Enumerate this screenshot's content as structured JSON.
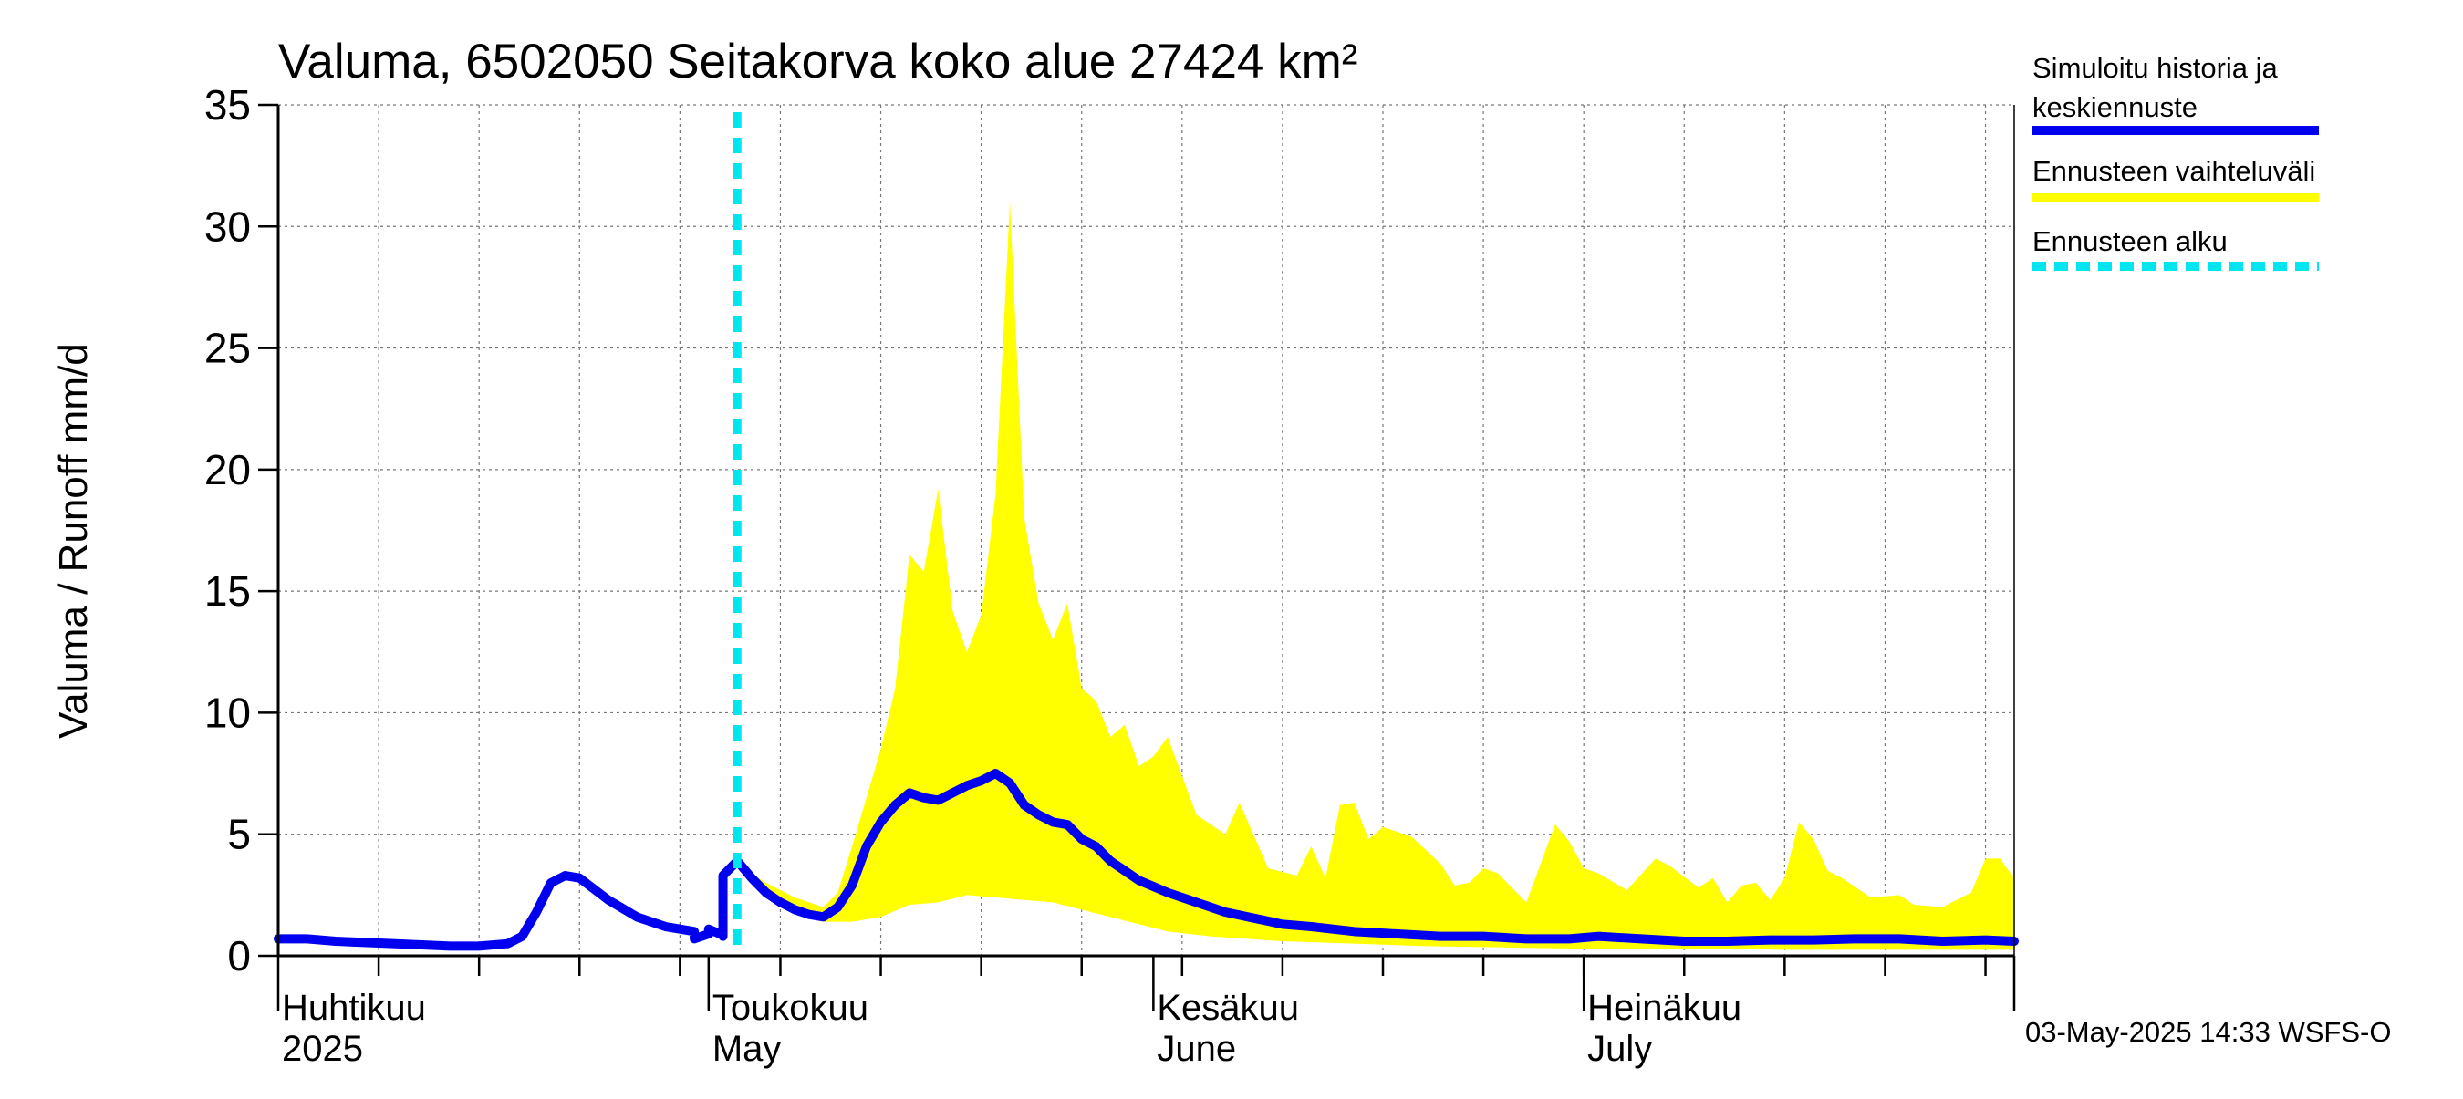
{
  "chart_data": {
    "type": "area",
    "title": "Valuma, 6502050 Seitakorva koko alue 27424 km²",
    "ylabel": "Valuma / Runoff     mm/d",
    "ylim": [
      0,
      35
    ],
    "yticks": [
      "0",
      "5",
      "10",
      "15",
      "20",
      "25",
      "30",
      "35"
    ],
    "xlim": [
      "2025-04-01",
      "2025-07-31"
    ],
    "grid": true,
    "legend_position": "right",
    "month_labels": [
      {
        "date": "2025-04-01",
        "fi": "Huhtikuu",
        "en": "2025"
      },
      {
        "date": "2025-05-01",
        "fi": "Toukokuu",
        "en": "May"
      },
      {
        "date": "2025-06-01",
        "fi": "Kesäkuu",
        "en": "June"
      },
      {
        "date": "2025-07-01",
        "fi": "Heinäkuu",
        "en": "July"
      }
    ],
    "forecast_start": "2025-05-03",
    "series": [
      {
        "name": "Simuloitu historia ja keskiennuste",
        "color": "#0000ee",
        "points": [
          [
            "2025-04-01",
            0.7
          ],
          [
            "2025-04-03",
            0.7
          ],
          [
            "2025-04-05",
            0.6
          ],
          [
            "2025-04-07",
            0.55
          ],
          [
            "2025-04-09",
            0.5
          ],
          [
            "2025-04-11",
            0.45
          ],
          [
            "2025-04-13",
            0.4
          ],
          [
            "2025-04-15",
            0.4
          ],
          [
            "2025-04-17",
            0.5
          ],
          [
            "2025-04-18",
            0.8
          ],
          [
            "2025-04-19",
            1.8
          ],
          [
            "2025-04-20",
            3.0
          ],
          [
            "2025-04-21",
            3.3
          ],
          [
            "2025-04-22",
            3.2
          ],
          [
            "2025-04-24",
            2.3
          ],
          [
            "2025-04-26",
            1.6
          ],
          [
            "2025-04-28",
            1.2
          ],
          [
            "2025-04-30",
            1.0
          ],
          [
            "2025-05-02",
            0.85
          ],
          [
            "2025-04-29",
            1.1
          ],
          [
            "2025-05-01",
            0.9
          ],
          [
            "2025-05-02",
            0.8
          ],
          [
            "2025-05-01",
            0.95
          ],
          [
            "2025-04-30",
            0.7
          ],
          [
            "2025-05-01",
            1.1
          ],
          [
            "2025-05-02",
            3.3
          ],
          [
            "2025-05-03",
            3.9
          ],
          [
            "2025-05-04",
            3.2
          ],
          [
            "2025-05-05",
            2.6
          ],
          [
            "2025-05-06",
            2.2
          ],
          [
            "2025-05-07",
            1.9
          ],
          [
            "2025-05-08",
            1.7
          ],
          [
            "2025-05-09",
            1.6
          ],
          [
            "2025-05-10",
            2.0
          ],
          [
            "2025-05-11",
            2.9
          ],
          [
            "2025-05-12",
            4.5
          ],
          [
            "2025-05-13",
            5.5
          ],
          [
            "2025-05-14",
            6.2
          ],
          [
            "2025-05-15",
            6.7
          ],
          [
            "2025-05-16",
            6.5
          ],
          [
            "2025-05-17",
            6.4
          ],
          [
            "2025-05-18",
            6.7
          ],
          [
            "2025-05-19",
            7.0
          ],
          [
            "2025-05-20",
            7.2
          ],
          [
            "2025-05-21",
            7.5
          ],
          [
            "2025-05-22",
            7.1
          ],
          [
            "2025-05-23",
            6.2
          ],
          [
            "2025-05-24",
            5.8
          ],
          [
            "2025-05-25",
            5.5
          ],
          [
            "2025-05-26",
            5.4
          ],
          [
            "2025-05-27",
            4.8
          ],
          [
            "2025-05-28",
            4.5
          ],
          [
            "2025-05-29",
            3.9
          ],
          [
            "2025-05-30",
            3.5
          ],
          [
            "2025-05-31",
            3.1
          ],
          [
            "2025-06-02",
            2.6
          ],
          [
            "2025-06-04",
            2.2
          ],
          [
            "2025-06-06",
            1.8
          ],
          [
            "2025-06-08",
            1.55
          ],
          [
            "2025-06-10",
            1.3
          ],
          [
            "2025-06-12",
            1.2
          ],
          [
            "2025-06-15",
            1.0
          ],
          [
            "2025-06-18",
            0.9
          ],
          [
            "2025-06-21",
            0.8
          ],
          [
            "2025-06-24",
            0.8
          ],
          [
            "2025-06-27",
            0.7
          ],
          [
            "2025-06-30",
            0.7
          ],
          [
            "2025-07-02",
            0.8
          ],
          [
            "2025-07-05",
            0.7
          ],
          [
            "2025-07-08",
            0.6
          ],
          [
            "2025-07-11",
            0.6
          ],
          [
            "2025-07-14",
            0.65
          ],
          [
            "2025-07-17",
            0.65
          ],
          [
            "2025-07-20",
            0.7
          ],
          [
            "2025-07-23",
            0.7
          ],
          [
            "2025-07-26",
            0.6
          ],
          [
            "2025-07-29",
            0.65
          ],
          [
            "2025-07-31",
            0.6
          ]
        ]
      },
      {
        "name": "Ennusteen vaihteluväli",
        "color": "#ffff00",
        "upper": [
          [
            "2025-05-03",
            3.8
          ],
          [
            "2025-05-05",
            3.0
          ],
          [
            "2025-05-07",
            2.4
          ],
          [
            "2025-05-09",
            2.0
          ],
          [
            "2025-05-10",
            2.6
          ],
          [
            "2025-05-11",
            4.5
          ],
          [
            "2025-05-12",
            6.5
          ],
          [
            "2025-05-13",
            8.5
          ],
          [
            "2025-05-14",
            11.0
          ],
          [
            "2025-05-15",
            16.5
          ],
          [
            "2025-05-16",
            15.8
          ],
          [
            "2025-05-17",
            19.2
          ],
          [
            "2025-05-18",
            14.2
          ],
          [
            "2025-05-19",
            12.5
          ],
          [
            "2025-05-20",
            14.0
          ],
          [
            "2025-05-21",
            19.0
          ],
          [
            "2025-05-22",
            31.0
          ],
          [
            "2025-05-23",
            18.0
          ],
          [
            "2025-05-24",
            14.5
          ],
          [
            "2025-05-25",
            13.0
          ],
          [
            "2025-05-26",
            14.5
          ],
          [
            "2025-05-27",
            11.0
          ],
          [
            "2025-05-28",
            10.5
          ],
          [
            "2025-05-29",
            9.0
          ],
          [
            "2025-05-30",
            9.5
          ],
          [
            "2025-05-31",
            7.8
          ],
          [
            "2025-06-01",
            8.2
          ],
          [
            "2025-06-02",
            9.0
          ],
          [
            "2025-06-04",
            5.8
          ],
          [
            "2025-06-06",
            5.0
          ],
          [
            "2025-06-07",
            6.3
          ],
          [
            "2025-06-09",
            3.6
          ],
          [
            "2025-06-11",
            3.3
          ],
          [
            "2025-06-12",
            4.5
          ],
          [
            "2025-06-13",
            3.2
          ],
          [
            "2025-06-14",
            6.2
          ],
          [
            "2025-06-15",
            6.3
          ],
          [
            "2025-06-16",
            4.8
          ],
          [
            "2025-06-17",
            5.3
          ],
          [
            "2025-06-19",
            4.9
          ],
          [
            "2025-06-21",
            3.8
          ],
          [
            "2025-06-22",
            2.9
          ],
          [
            "2025-06-23",
            3.0
          ],
          [
            "2025-06-24",
            3.6
          ],
          [
            "2025-06-25",
            3.4
          ],
          [
            "2025-06-27",
            2.2
          ],
          [
            "2025-06-29",
            5.4
          ],
          [
            "2025-06-30",
            4.7
          ],
          [
            "2025-07-01",
            3.6
          ],
          [
            "2025-07-02",
            3.4
          ],
          [
            "2025-07-04",
            2.7
          ],
          [
            "2025-07-06",
            4.0
          ],
          [
            "2025-07-07",
            3.7
          ],
          [
            "2025-07-09",
            2.8
          ],
          [
            "2025-07-10",
            3.2
          ],
          [
            "2025-07-11",
            2.2
          ],
          [
            "2025-07-12",
            2.9
          ],
          [
            "2025-07-13",
            3.0
          ],
          [
            "2025-07-14",
            2.3
          ],
          [
            "2025-07-15",
            3.2
          ],
          [
            "2025-07-16",
            5.5
          ],
          [
            "2025-07-17",
            4.8
          ],
          [
            "2025-07-18",
            3.5
          ],
          [
            "2025-07-19",
            3.2
          ],
          [
            "2025-07-21",
            2.4
          ],
          [
            "2025-07-23",
            2.5
          ],
          [
            "2025-07-24",
            2.1
          ],
          [
            "2025-07-26",
            2.0
          ],
          [
            "2025-07-28",
            2.6
          ],
          [
            "2025-07-29",
            4.0
          ],
          [
            "2025-07-30",
            4.0
          ],
          [
            "2025-07-31",
            3.2
          ]
        ],
        "lower": [
          [
            "2025-05-03",
            3.8
          ],
          [
            "2025-05-05",
            2.6
          ],
          [
            "2025-05-07",
            1.8
          ],
          [
            "2025-05-09",
            1.4
          ],
          [
            "2025-05-11",
            1.4
          ],
          [
            "2025-05-13",
            1.6
          ],
          [
            "2025-05-15",
            2.1
          ],
          [
            "2025-05-17",
            2.2
          ],
          [
            "2025-05-19",
            2.5
          ],
          [
            "2025-05-21",
            2.4
          ],
          [
            "2025-05-23",
            2.3
          ],
          [
            "2025-05-25",
            2.2
          ],
          [
            "2025-05-27",
            1.9
          ],
          [
            "2025-05-29",
            1.6
          ],
          [
            "2025-05-31",
            1.3
          ],
          [
            "2025-06-02",
            1.0
          ],
          [
            "2025-06-05",
            0.8
          ],
          [
            "2025-06-10",
            0.6
          ],
          [
            "2025-06-15",
            0.5
          ],
          [
            "2025-06-20",
            0.4
          ],
          [
            "2025-06-25",
            0.35
          ],
          [
            "2025-06-30",
            0.3
          ],
          [
            "2025-07-05",
            0.3
          ],
          [
            "2025-07-10",
            0.3
          ],
          [
            "2025-07-15",
            0.25
          ],
          [
            "2025-07-20",
            0.25
          ],
          [
            "2025-07-25",
            0.25
          ],
          [
            "2025-07-31",
            0.25
          ]
        ]
      },
      {
        "name": "Ennusteen alku",
        "color": "#00e5ee",
        "x": "2025-05-03"
      }
    ]
  },
  "legend": {
    "items": [
      {
        "line1": "Simuloitu historia ja",
        "line2": "keskiennuste",
        "color": "#0000ee",
        "style": "solid"
      },
      {
        "line1": "Ennusteen vaihteluväli",
        "line2": "",
        "color": "#ffff00",
        "style": "solid"
      },
      {
        "line1": "Ennusteen alku",
        "line2": "",
        "color": "#00e5ee",
        "style": "dashed"
      }
    ]
  },
  "footer": "03-May-2025 14:33 WSFS-O"
}
